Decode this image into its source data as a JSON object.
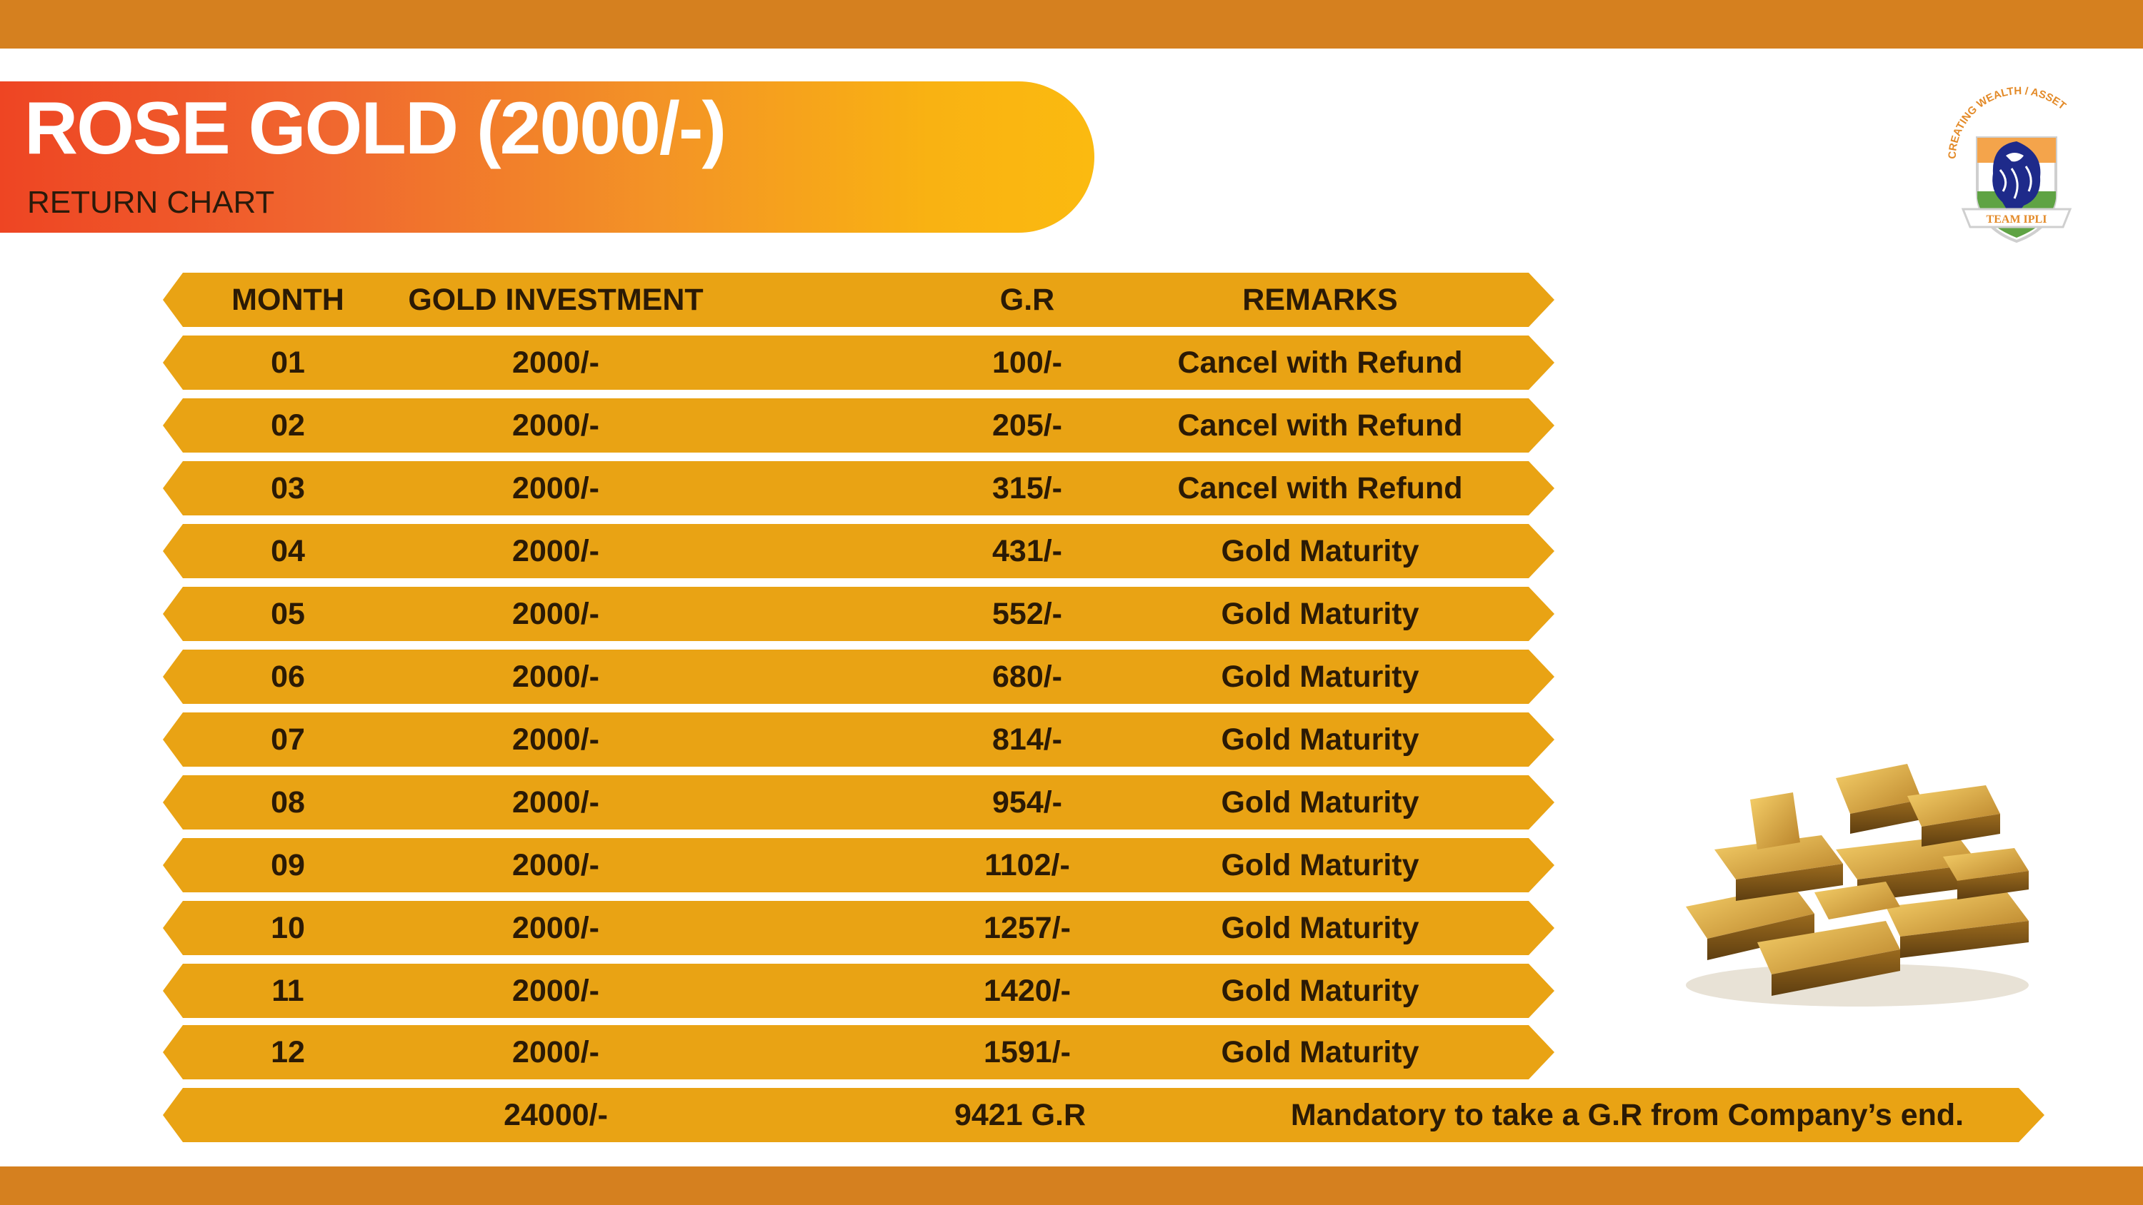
{
  "title": "ROSE GOLD (2000/-)",
  "subtitle": "RETURN CHART",
  "logo": {
    "arc_text": "CREATING WEALTH / ASSET",
    "banner_text": "TEAM IPLI",
    "icon": "lion-head-shield-icon"
  },
  "table": {
    "headers": {
      "month": "MONTH",
      "investment": "GOLD INVESTMENT",
      "gr": "G.R",
      "remarks": "REMARKS"
    },
    "rows": [
      {
        "month": "01",
        "investment": "2000/-",
        "gr": "100/-",
        "remarks": "Cancel with Refund"
      },
      {
        "month": "02",
        "investment": "2000/-",
        "gr": "205/-",
        "remarks": "Cancel with Refund"
      },
      {
        "month": "03",
        "investment": "2000/-",
        "gr": "315/-",
        "remarks": "Cancel with Refund"
      },
      {
        "month": "04",
        "investment": "2000/-",
        "gr": "431/-",
        "remarks": "Gold Maturity"
      },
      {
        "month": "05",
        "investment": "2000/-",
        "gr": "552/-",
        "remarks": "Gold Maturity"
      },
      {
        "month": "06",
        "investment": "2000/-",
        "gr": "680/-",
        "remarks": "Gold Maturity"
      },
      {
        "month": "07",
        "investment": "2000/-",
        "gr": "814/-",
        "remarks": "Gold Maturity"
      },
      {
        "month": "08",
        "investment": "2000/-",
        "gr": "954/-",
        "remarks": "Gold Maturity"
      },
      {
        "month": "09",
        "investment": "2000/-",
        "gr": "1102/-",
        "remarks": "Gold Maturity"
      },
      {
        "month": "10",
        "investment": "2000/-",
        "gr": "1257/-",
        "remarks": "Gold Maturity"
      },
      {
        "month": "11",
        "investment": "2000/-",
        "gr": "1420/-",
        "remarks": "Gold Maturity"
      },
      {
        "month": "12",
        "investment": "2000/-",
        "gr": "1591/-",
        "remarks": "Gold Maturity"
      }
    ],
    "total": {
      "investment": "24000/-",
      "gr": "9421 G.R",
      "remarks": "Mandatory to take a G.R from Company’s end."
    }
  },
  "image": {
    "icon": "gold-bars-pile-icon"
  },
  "colors": {
    "band": "#D5801F",
    "row": "#E9A314",
    "banner_start": "#EE4523",
    "banner_end": "#FBBA10",
    "text_dark": "#2b1a05"
  }
}
